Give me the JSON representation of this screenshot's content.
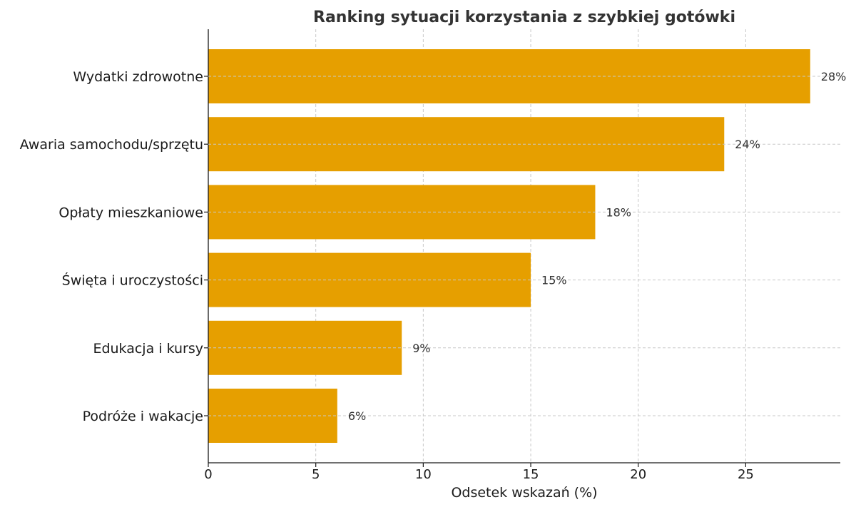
{
  "chart_data": {
    "type": "bar",
    "orientation": "horizontal",
    "title": "Ranking sytuacji korzystania z szybkiej gotówki",
    "xlabel": "Odsetek wskazań (%)",
    "ylabel": "",
    "categories": [
      "Wydatki zdrowotne",
      "Awaria samochodu/sprzętu",
      "Opłaty mieszkaniowe",
      "Święta i uroczystości",
      "Edukacja i kursy",
      "Podróże i wakacje"
    ],
    "values": [
      28,
      24,
      18,
      15,
      9,
      6
    ],
    "value_labels": [
      "28%",
      "24%",
      "18%",
      "15%",
      "9%",
      "6%"
    ],
    "xlim": [
      0,
      29.4
    ],
    "xticks": [
      0,
      5,
      10,
      15,
      20,
      25
    ],
    "xtick_labels": [
      "0",
      "5",
      "10",
      "15",
      "20",
      "25"
    ],
    "grid": true,
    "legend": "none",
    "bar_color": "#E69F00"
  }
}
